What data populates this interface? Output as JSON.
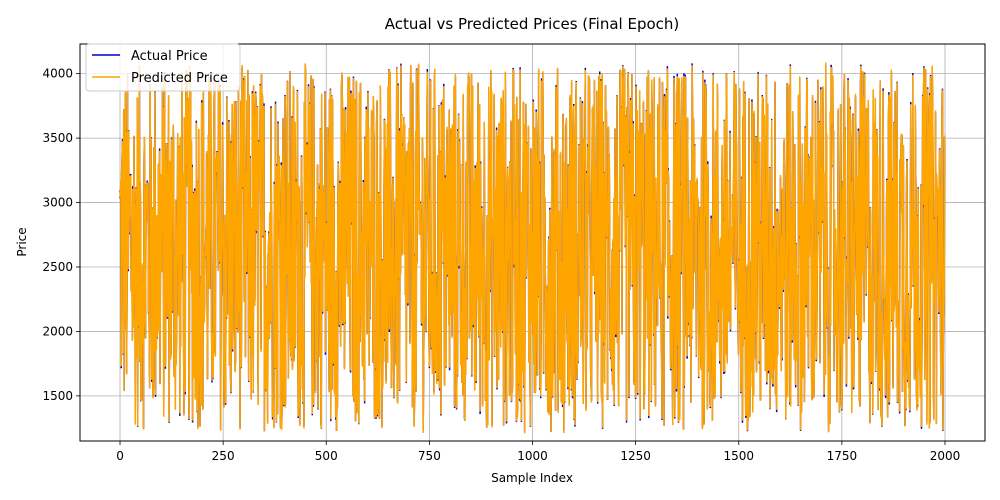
{
  "chart_data": {
    "type": "line",
    "title": "Actual vs Predicted Prices (Final Epoch)",
    "xlabel": "Sample Index",
    "ylabel": "Price",
    "xlim": [
      -97,
      2097
    ],
    "ylim": [
      1150,
      4230
    ],
    "xticks": [
      0,
      250,
      500,
      750,
      1000,
      1250,
      1500,
      1750,
      2000
    ],
    "yticks": [
      1500,
      2000,
      2500,
      3000,
      3500,
      4000
    ],
    "grid": true,
    "legend_position": "top-left",
    "n_points": 2000,
    "value_range": [
      1220,
      4080
    ],
    "series": [
      {
        "name": "Actual Price",
        "color": "#0000cc"
      },
      {
        "name": "Predicted Price",
        "color": "#ffa500"
      }
    ]
  }
}
